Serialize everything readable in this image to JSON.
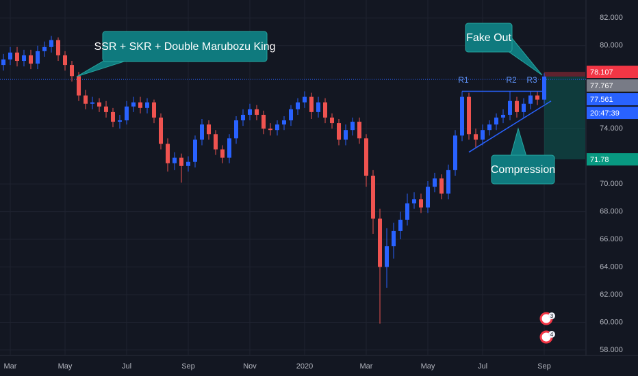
{
  "chart_data": {
    "type": "candlestick",
    "categories": [
      null,
      "Mar",
      null,
      null,
      null,
      null,
      null,
      null,
      null,
      "May",
      null,
      null,
      null,
      null,
      null,
      null,
      null,
      null,
      "Jul",
      null,
      null,
      null,
      null,
      null,
      null,
      null,
      null,
      "Sep",
      null,
      null,
      null,
      null,
      null,
      null,
      null,
      null,
      "Nov",
      null,
      null,
      null,
      null,
      null,
      null,
      null,
      "2020",
      null,
      null,
      null,
      null,
      null,
      null,
      null,
      null,
      "Mar",
      null,
      null,
      null,
      null,
      null,
      null,
      null,
      null,
      "May",
      null,
      null,
      null,
      null,
      null,
      null,
      null,
      "Jul",
      null,
      null,
      null,
      null,
      null,
      null,
      null,
      null,
      "Sep"
    ],
    "open": [
      78.6,
      79.0,
      79.5,
      78.9,
      79.3,
      78.7,
      79.6,
      79.9,
      80.4,
      79.3,
      78.6,
      77.8,
      76.4,
      75.8,
      75.9,
      75.6,
      75.2,
      74.5,
      74.6,
      75.6,
      75.9,
      75.5,
      75.9,
      74.8,
      72.9,
      71.5,
      71.9,
      71.3,
      71.6,
      73.2,
      74.3,
      73.6,
      72.5,
      71.9,
      73.3,
      74.6,
      75.0,
      75.4,
      75.0,
      74.0,
      73.9,
      74.3,
      74.6,
      75.4,
      75.9,
      76.3,
      75.2,
      75.9,
      74.8,
      74.4,
      73.2,
      73.9,
      74.5,
      73.3,
      70.6,
      67.5,
      64.0,
      65.5,
      66.6,
      67.4,
      68.6,
      68.9,
      68.3,
      69.8,
      70.4,
      69.3,
      71.0,
      73.5,
      76.3,
      73.6,
      73.2,
      73.9,
      74.3,
      74.8,
      75.0,
      76.0,
      75.2,
      75.8,
      76.4,
      76.1
    ],
    "high": [
      79.4,
      79.9,
      79.9,
      79.7,
      79.7,
      80.0,
      80.3,
      80.7,
      80.6,
      79.6,
      78.9,
      78.1,
      76.8,
      76.3,
      76.2,
      76.0,
      75.5,
      75.0,
      76.0,
      76.3,
      76.3,
      76.2,
      76.1,
      75.1,
      73.3,
      72.3,
      72.2,
      72.0,
      73.5,
      74.7,
      74.6,
      73.9,
      72.8,
      73.6,
      74.9,
      75.4,
      75.8,
      75.7,
      75.3,
      74.4,
      74.6,
      74.9,
      75.7,
      76.2,
      76.7,
      76.6,
      76.3,
      76.2,
      75.1,
      74.7,
      74.3,
      74.8,
      74.8,
      73.6,
      71.0,
      68.2,
      66.8,
      67.2,
      68.0,
      69.3,
      69.4,
      69.3,
      70.2,
      70.8,
      70.7,
      71.4,
      73.9,
      76.7,
      76.6,
      74.0,
      74.3,
      74.6,
      75.1,
      75.4,
      76.7,
      76.3,
      76.2,
      76.7,
      76.7,
      78.0
    ],
    "low": [
      78.2,
      78.6,
      78.5,
      78.5,
      78.3,
      78.3,
      79.2,
      79.5,
      78.9,
      78.2,
      77.4,
      76.0,
      75.4,
      75.4,
      75.2,
      74.8,
      74.1,
      74.0,
      74.3,
      75.2,
      75.1,
      75.1,
      74.4,
      72.5,
      70.9,
      71.0,
      70.1,
      70.9,
      71.2,
      72.8,
      73.2,
      72.1,
      71.5,
      71.5,
      72.9,
      74.2,
      74.6,
      74.6,
      73.6,
      73.5,
      73.5,
      73.9,
      74.2,
      75.0,
      75.5,
      74.7,
      74.8,
      74.4,
      74.0,
      72.8,
      72.8,
      73.5,
      72.9,
      69.8,
      66.4,
      59.9,
      62.5,
      64.6,
      66.0,
      67.0,
      68.2,
      67.9,
      67.9,
      69.4,
      68.9,
      68.9,
      70.6,
      73.1,
      73.2,
      72.6,
      72.8,
      73.5,
      73.9,
      74.4,
      74.6,
      74.8,
      74.8,
      75.4,
      75.7,
      75.8
    ],
    "close": [
      79.0,
      79.5,
      78.9,
      79.3,
      78.7,
      79.6,
      79.9,
      80.4,
      79.3,
      78.6,
      77.8,
      76.4,
      75.8,
      75.9,
      75.6,
      75.2,
      74.5,
      74.6,
      75.6,
      75.9,
      75.5,
      75.9,
      74.8,
      72.9,
      71.5,
      71.9,
      71.3,
      71.6,
      73.2,
      74.3,
      73.6,
      72.5,
      71.9,
      73.3,
      74.6,
      75.0,
      75.4,
      75.0,
      74.0,
      73.9,
      74.3,
      74.6,
      75.4,
      75.9,
      76.3,
      75.2,
      75.9,
      74.8,
      74.4,
      73.2,
      73.9,
      74.5,
      73.3,
      70.6,
      67.5,
      64.0,
      65.5,
      66.6,
      67.4,
      68.6,
      68.9,
      68.3,
      69.8,
      70.4,
      69.3,
      71.0,
      73.5,
      76.3,
      73.6,
      73.2,
      73.9,
      74.3,
      74.8,
      75.0,
      76.0,
      75.2,
      75.8,
      76.4,
      76.1,
      77.767
    ],
    "up_color": "#2962ff",
    "down_color": "#ef5350",
    "ylim": [
      57.6,
      83.3
    ],
    "yticks": [
      {
        "value": 82,
        "label": "82.000"
      },
      {
        "value": 80,
        "label": "80.000"
      },
      {
        "value": 74,
        "label": "74.000"
      },
      {
        "value": 70,
        "label": "70.000"
      },
      {
        "value": 68,
        "label": "68.000"
      },
      {
        "value": 66,
        "label": "66.000"
      },
      {
        "value": 64,
        "label": "64.000"
      },
      {
        "value": 62,
        "label": "62.000"
      },
      {
        "value": 60,
        "label": "60.000"
      },
      {
        "value": 58,
        "label": "58.000"
      }
    ],
    "grid": true,
    "price_tags": [
      {
        "value": 78.107,
        "color": "#f23645"
      },
      {
        "value": 77.767,
        "color": "#787b86"
      },
      {
        "value": 77.561,
        "color": "#2962ff"
      },
      {
        "value": 71.78,
        "color": "#089981"
      }
    ],
    "countdown": "20:47:39",
    "trendlines": [
      {
        "x": [
          67,
          79
        ],
        "y": [
          76.7,
          76.7
        ]
      },
      {
        "x": [
          68,
          80
        ],
        "y": [
          72.3,
          76.0
        ]
      }
    ],
    "annotations": [
      "SSR + SKR + Double Marubozu King",
      "Fake Out",
      "Compression",
      "R1",
      "R2",
      "R3"
    ],
    "badges": [
      "3",
      "4"
    ]
  }
}
